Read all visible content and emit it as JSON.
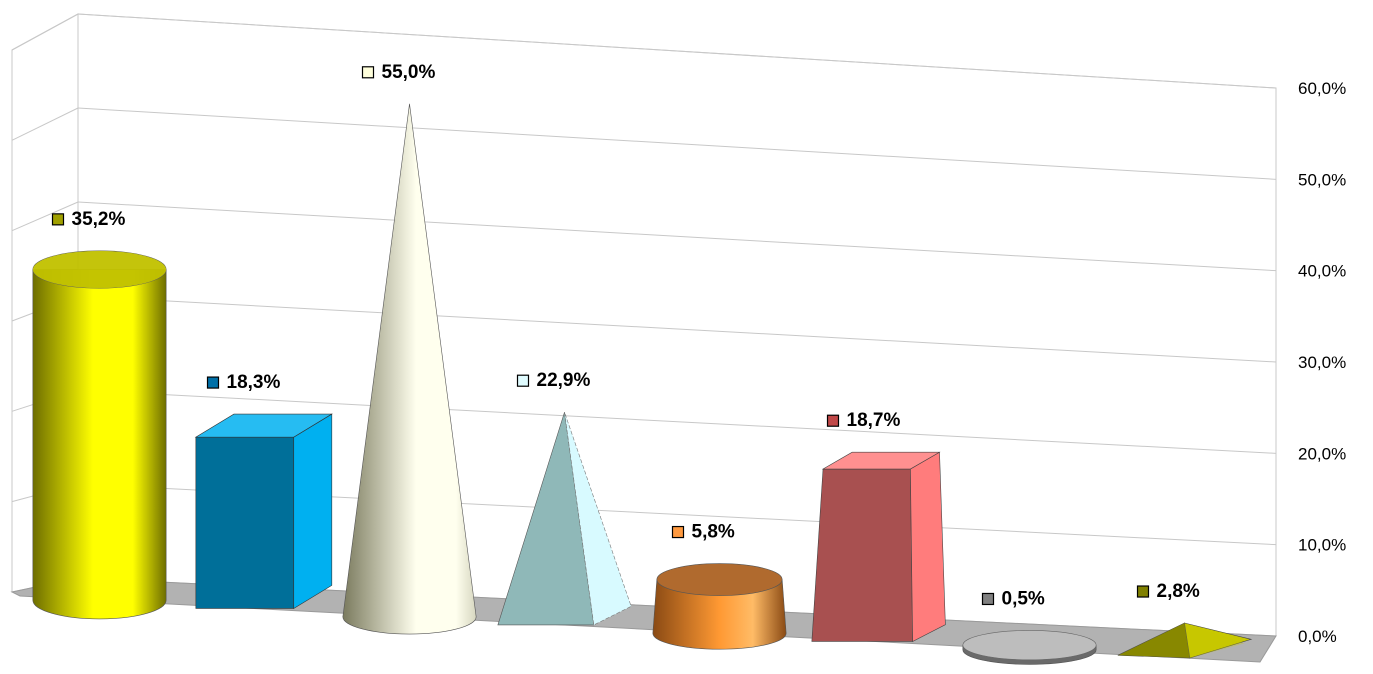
{
  "chart_data": {
    "type": "bar",
    "style": "3d-shapes",
    "title": "",
    "xlabel": "",
    "ylabel": "",
    "ylim": [
      0,
      60
    ],
    "y_ticks": [
      0,
      10,
      20,
      30,
      40,
      50,
      60
    ],
    "y_tick_labels": [
      "0,0%",
      "10,0%",
      "20,0%",
      "30,0%",
      "40,0%",
      "50,0%",
      "60,0%"
    ],
    "y_axis_position": "right",
    "grid": true,
    "legend": "none",
    "values": [
      35.2,
      18.3,
      55.0,
      22.9,
      5.8,
      18.7,
      0.5,
      2.8
    ],
    "data_labels": [
      "35,2%",
      "18,3%",
      "55,0%",
      "22,9%",
      "5,8%",
      "18,7%",
      "0,5%",
      "2,8%"
    ],
    "shapes": [
      "cylinder",
      "box",
      "cone",
      "pyramid",
      "cylinder",
      "truncated-pyramid",
      "cylinder",
      "pyramid"
    ],
    "colors": [
      "#FFFF00",
      "#00B0F0",
      "#FFFFEE",
      "#D8FAFF",
      "#FF9933",
      "#FF7C7C",
      "#BDBDBD",
      "#C8C800"
    ],
    "dark_colors": [
      "#6E6E00",
      "#006F99",
      "#7A7A5E",
      "#8FB8B8",
      "#8A4A14",
      "#A85050",
      "#6A6A6A",
      "#6E6E00"
    ],
    "label_marker_colors": [
      "#A0A000",
      "#0070A8",
      "#FFFFDC",
      "#E0FCFF",
      "#FF9A40",
      "#C04848",
      "#808080",
      "#808000"
    ],
    "floor_color": "#B2B2B2",
    "grid_color": "#C8C8C8"
  }
}
